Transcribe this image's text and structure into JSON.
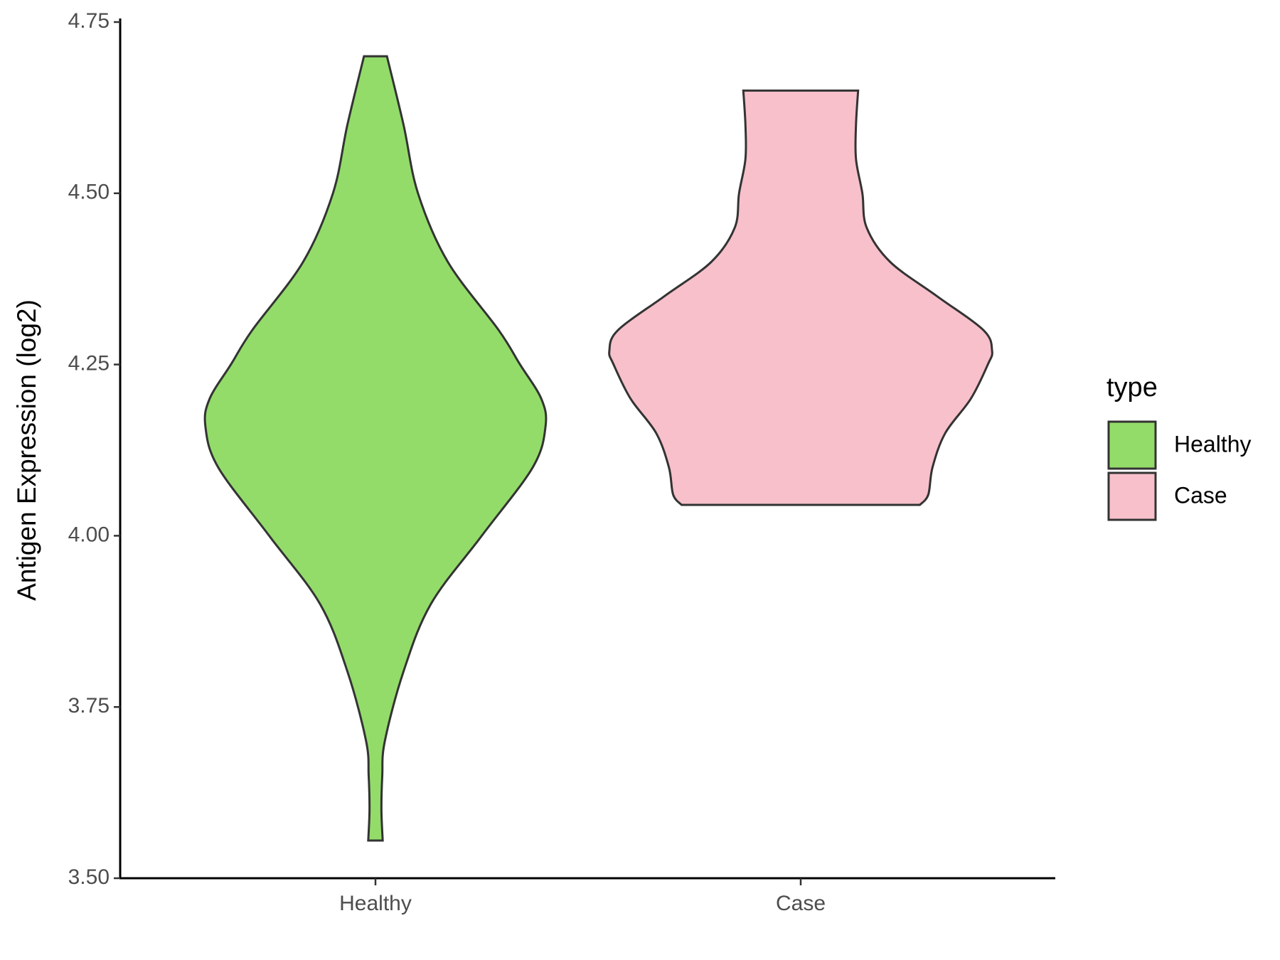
{
  "chart_data": {
    "type": "violin",
    "y_label": "Antigen Expression (log2)",
    "categories": [
      "Healthy",
      "Case"
    ],
    "legend_title": "type",
    "ylim": [
      3.5,
      4.75
    ],
    "yticks": [
      {
        "value": 3.5,
        "label": "3.50"
      },
      3.75,
      {
        "value": 4.0,
        "label": "4.00"
      },
      4.25,
      {
        "value": 4.5,
        "label": "4.50"
      },
      4.75
    ],
    "series": [
      {
        "name": "Healthy",
        "color": "#93dc6a",
        "y": [
          3.555,
          3.6,
          3.65,
          3.7,
          3.8,
          3.9,
          4.0,
          4.1,
          4.16,
          4.2,
          4.25,
          4.3,
          4.4,
          4.5,
          4.6,
          4.7
        ],
        "half_width": [
          0.017,
          0.014,
          0.016,
          0.022,
          0.065,
          0.13,
          0.25,
          0.37,
          0.4,
          0.39,
          0.34,
          0.29,
          0.17,
          0.1,
          0.066,
          0.027
        ]
      },
      {
        "name": "Case",
        "color": "#f7c0cb",
        "y": [
          4.045,
          4.06,
          4.1,
          4.15,
          4.2,
          4.25,
          4.27,
          4.3,
          4.35,
          4.4,
          4.45,
          4.5,
          4.55,
          4.6,
          4.65
        ],
        "half_width": [
          0.28,
          0.3,
          0.31,
          0.34,
          0.4,
          0.44,
          0.45,
          0.43,
          0.32,
          0.21,
          0.155,
          0.145,
          0.13,
          0.13,
          0.135
        ]
      }
    ]
  }
}
